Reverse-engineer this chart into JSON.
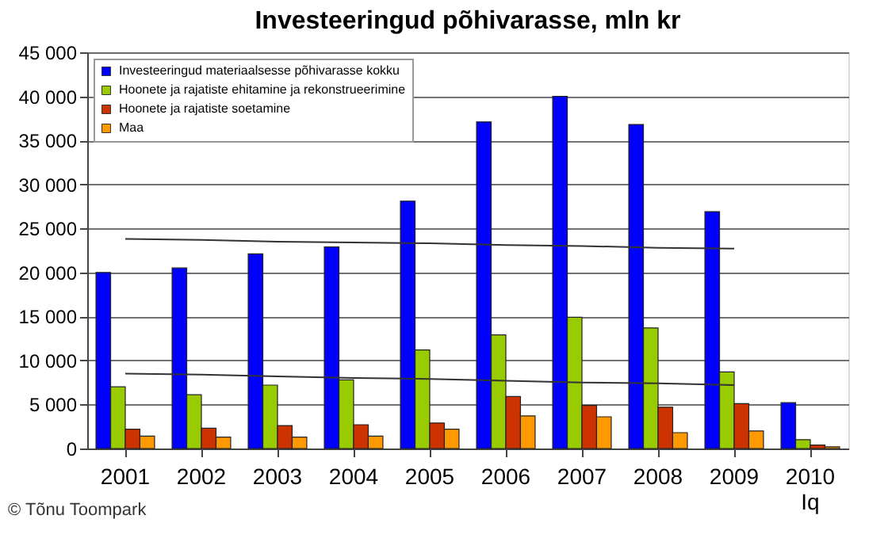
{
  "chart_data": {
    "type": "bar",
    "title": "Investeeringud põhivarasse, mln kr",
    "categories": [
      "2001",
      "2002",
      "2003",
      "2004",
      "2005",
      "2006",
      "2007",
      "2008",
      "2009",
      "2010\nIq"
    ],
    "series": [
      {
        "name": "Investeeringud materiaalsesse põhivarasse kokku",
        "color": "#0000ff",
        "values": [
          20000,
          20500,
          22100,
          22900,
          28100,
          37100,
          40000,
          36800,
          26900,
          5200
        ]
      },
      {
        "name": "Hoonete ja rajatiste ehitamine ja rekonstrueerimine",
        "color": "#99cc00",
        "values": [
          7000,
          6100,
          7200,
          7800,
          11200,
          12900,
          14900,
          13700,
          8700,
          1000
        ]
      },
      {
        "name": "Hoonete ja rajatiste soetamine",
        "color": "#cc3300",
        "values": [
          2200,
          2300,
          2600,
          2700,
          2900,
          5900,
          4900,
          4700,
          5100,
          400
        ]
      },
      {
        "name": "Maa",
        "color": "#ff9900",
        "values": [
          1400,
          1300,
          1300,
          1400,
          2200,
          3700,
          3600,
          1800,
          2000,
          200
        ]
      },
      {
        "type": "line",
        "color": "#333333",
        "values": [
          23800,
          23700,
          23500,
          23400,
          23300,
          23100,
          23000,
          22800,
          22700,
          null
        ]
      },
      {
        "type": "line",
        "color": "#333333",
        "values": [
          8500,
          8400,
          8200,
          8000,
          7900,
          7700,
          7500,
          7400,
          7200,
          null
        ]
      }
    ],
    "ylim": [
      0,
      45000
    ],
    "yticks": [
      0,
      5000,
      10000,
      15000,
      20000,
      25000,
      30000,
      35000,
      40000,
      45000
    ],
    "grid": "y",
    "legend": "top left",
    "annotations": [
      "© Tõnu Toompark"
    ]
  }
}
